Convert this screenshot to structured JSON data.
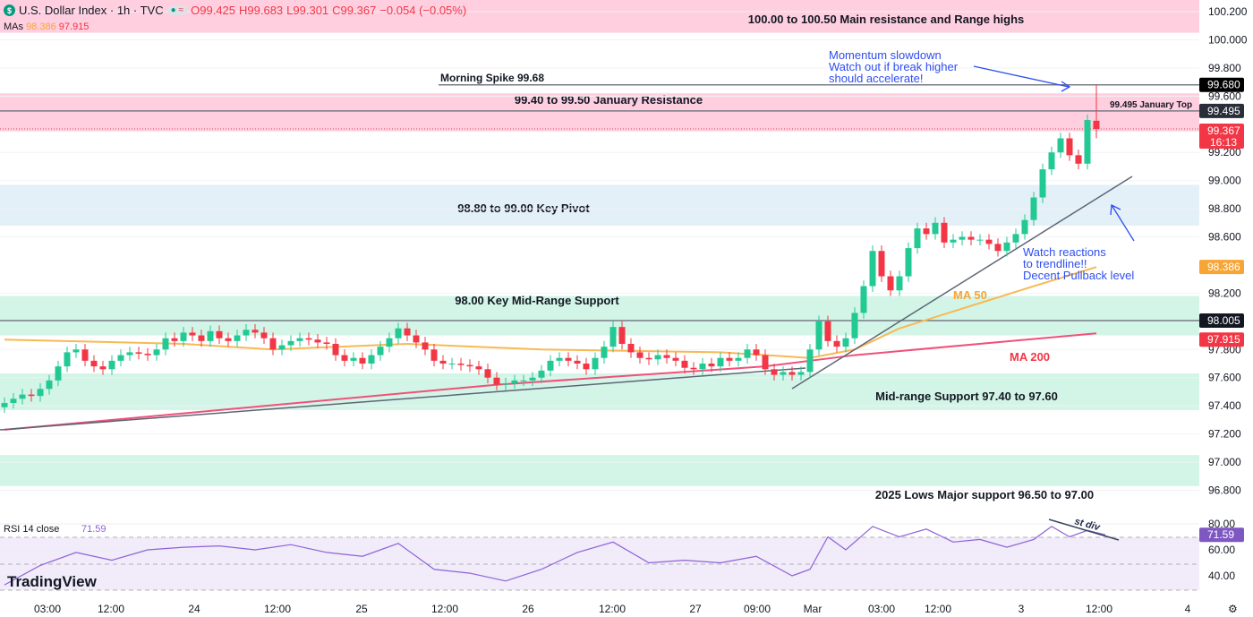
{
  "header": {
    "symbol": "U.S. Dollar Index · 1h · TVC",
    "open": "O99.425",
    "high": "H99.683",
    "low": "L99.301",
    "close": "C99.367",
    "change": "−0.054 (−0.05%)",
    "mas_label": "MAs",
    "ma50_value": "98.386",
    "ma200_value": "97.915",
    "logo_letter": "$",
    "pill_icon": "≈"
  },
  "brand": "TradingView",
  "rsi_label": "RSI 14 close",
  "rsi_value": "71.59",
  "colors": {
    "up": "#22c993",
    "down": "#f23645",
    "ma50": "#f7b955",
    "ma200": "#f0507a",
    "rsi": "#8e62d6",
    "resistance_zone": "#ffcfe0",
    "pivot_zone": "#e3f0f8",
    "support_zone": "#d3f5e7",
    "annotation_blue": "#2e4ef0"
  },
  "chart_data": {
    "type": "candlestick",
    "ylim": [
      96.65,
      100.3
    ],
    "price_ticks": [
      "100.200",
      "100.000",
      "99.800",
      "99.600",
      "99.200",
      "99.000",
      "98.800",
      "98.600",
      "98.200",
      "97.800",
      "97.600",
      "97.400",
      "97.200",
      "97.000",
      "96.800"
    ],
    "time_ticks": [
      {
        "i": 4.8,
        "label": "03:00"
      },
      {
        "i": 11.9,
        "label": "12:00"
      },
      {
        "i": 21.2,
        "label": "24"
      },
      {
        "i": 30.5,
        "label": "12:00"
      },
      {
        "i": 39.9,
        "label": "25"
      },
      {
        "i": 49.2,
        "label": "12:00"
      },
      {
        "i": 58.5,
        "label": "26"
      },
      {
        "i": 67.9,
        "label": "12:00"
      },
      {
        "i": 77.2,
        "label": "27"
      },
      {
        "i": 84.1,
        "label": "09:00"
      },
      {
        "i": 90.3,
        "label": "Mar"
      },
      {
        "i": 98,
        "label": "03:00"
      },
      {
        "i": 104.3,
        "label": "12:00"
      },
      {
        "i": 113.6,
        "label": "3"
      },
      {
        "i": 122.3,
        "label": "12:00"
      },
      {
        "i": 132.2,
        "label": "4"
      }
    ],
    "closes": [
      97.42,
      97.45,
      97.48,
      97.47,
      97.52,
      97.58,
      97.68,
      97.78,
      97.8,
      97.72,
      97.68,
      97.66,
      97.72,
      97.76,
      97.78,
      97.77,
      97.76,
      97.8,
      97.88,
      97.86,
      97.92,
      97.9,
      97.86,
      97.93,
      97.88,
      97.86,
      97.9,
      97.94,
      97.92,
      97.88,
      97.8,
      97.83,
      97.86,
      97.88,
      97.87,
      97.85,
      97.84,
      97.76,
      97.72,
      97.74,
      97.7,
      97.76,
      97.82,
      97.88,
      97.95,
      97.9,
      97.85,
      97.8,
      97.72,
      97.7,
      97.7,
      97.69,
      97.68,
      97.66,
      97.6,
      97.55,
      97.56,
      97.58,
      97.58,
      97.6,
      97.65,
      97.72,
      97.74,
      97.72,
      97.7,
      97.66,
      97.74,
      97.82,
      97.96,
      97.84,
      97.78,
      97.74,
      97.73,
      97.76,
      97.74,
      97.72,
      97.67,
      97.66,
      97.7,
      97.68,
      97.74,
      97.72,
      97.74,
      97.8,
      97.76,
      97.66,
      97.62,
      97.64,
      97.62,
      97.64,
      97.8,
      98.0,
      97.86,
      97.82,
      97.88,
      98.06,
      98.25,
      98.5,
      98.32,
      98.22,
      98.32,
      98.52,
      98.66,
      98.62,
      98.7,
      98.56,
      98.58,
      98.6,
      98.58,
      98.58,
      98.55,
      98.5,
      98.56,
      98.62,
      98.72,
      98.88,
      99.08,
      99.2,
      99.3,
      99.18,
      99.12,
      99.43
    ],
    "last_candle": {
      "open": 99.425,
      "high": 99.683,
      "low": 99.301,
      "close": 99.367
    },
    "ma50": [
      [
        0,
        97.87
      ],
      [
        20,
        97.84
      ],
      [
        30,
        97.8
      ],
      [
        45,
        97.84
      ],
      [
        60,
        97.8
      ],
      [
        80,
        97.78
      ],
      [
        90,
        97.74
      ],
      [
        95,
        97.8
      ],
      [
        100,
        97.95
      ],
      [
        105,
        98.05
      ],
      [
        110,
        98.15
      ],
      [
        115,
        98.25
      ],
      [
        122,
        98.386
      ]
    ],
    "ma200": [
      [
        0,
        97.23
      ],
      [
        55,
        97.55
      ],
      [
        85,
        97.68
      ],
      [
        95,
        97.76
      ],
      [
        122,
        97.915
      ]
    ],
    "rsi": {
      "ticks": [
        "80.00",
        "60.00",
        "40.00"
      ],
      "values": [
        [
          0,
          33
        ],
        [
          4,
          48
        ],
        [
          8,
          58
        ],
        [
          12,
          52
        ],
        [
          16,
          60
        ],
        [
          20,
          62
        ],
        [
          24,
          63
        ],
        [
          28,
          60
        ],
        [
          32,
          64
        ],
        [
          36,
          58
        ],
        [
          40,
          55
        ],
        [
          44,
          65
        ],
        [
          48,
          45
        ],
        [
          52,
          42
        ],
        [
          56,
          36
        ],
        [
          60,
          45
        ],
        [
          64,
          58
        ],
        [
          68,
          66
        ],
        [
          72,
          50
        ],
        [
          76,
          52
        ],
        [
          80,
          50
        ],
        [
          84,
          55
        ],
        [
          88,
          40
        ],
        [
          90,
          45
        ],
        [
          92,
          70
        ],
        [
          94,
          60
        ],
        [
          97,
          78
        ],
        [
          100,
          70
        ],
        [
          103,
          76
        ],
        [
          106,
          66
        ],
        [
          109,
          68
        ],
        [
          112,
          62
        ],
        [
          115,
          68
        ],
        [
          117,
          78
        ],
        [
          119,
          70
        ],
        [
          121,
          75
        ],
        [
          123,
          71.59
        ]
      ]
    },
    "zones": [
      {
        "from": 100.05,
        "to": 100.3,
        "kind": "resistance",
        "label": "100.00 to 100.50 Main resistance and Range highs"
      },
      {
        "from": 99.35,
        "to": 99.62,
        "kind": "resistance",
        "label": "99.40 to 99.50 January Resistance"
      },
      {
        "from": 98.68,
        "to": 98.97,
        "kind": "pivot",
        "label": "98.80 to 99.00 Key Pivot"
      },
      {
        "from": 97.9,
        "to": 98.18,
        "kind": "support",
        "label": "98.00 Key Mid-Range Support"
      },
      {
        "from": 97.37,
        "to": 97.63,
        "kind": "support",
        "label": "Mid-range Support 97.40 to 97.60"
      },
      {
        "from": 96.83,
        "to": 97.05,
        "kind": "support",
        "label": "2025 Lows Major support 96.50 to 97.00"
      }
    ],
    "price_labels": [
      {
        "value": "99.680",
        "bg": "#000000"
      },
      {
        "value": "99.495",
        "bg": "#2a2e39"
      },
      {
        "value": "99.367",
        "sub": "16:13",
        "bg": "#f23645"
      },
      {
        "value": "98.386",
        "bg": "#f7a534"
      },
      {
        "value": "98.005",
        "bg": "#131722"
      },
      {
        "value": "97.915",
        "bg": "#f23645"
      },
      {
        "value": "71.59",
        "bg": "#7e57c2"
      }
    ],
    "annotations": {
      "morning_spike": "Morning Spike 99.68",
      "january_top": "99.495 January Top",
      "momentum": [
        "Momentum slowdown",
        "Watch out if break higher",
        "should accelerate!"
      ],
      "trendline_note": [
        "Watch reactions",
        "to trendline!!",
        "Decent Pullback level"
      ],
      "ma50": "MA 50",
      "ma200": "MA 200",
      "div": "st div"
    }
  }
}
